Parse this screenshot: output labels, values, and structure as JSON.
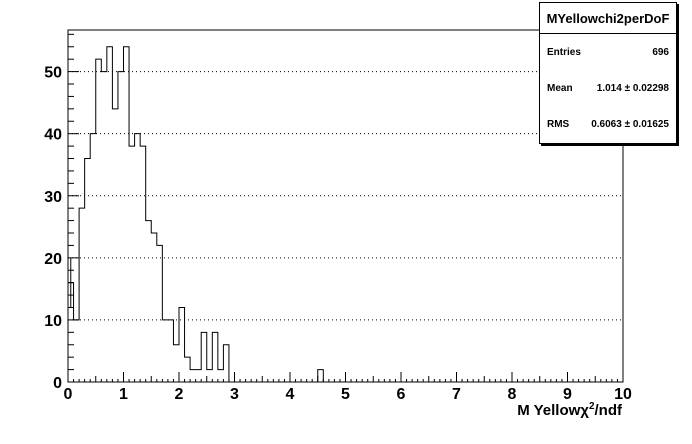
{
  "chart_data": {
    "type": "bar",
    "histogram_style": "step",
    "xlabel": "M Yellowχ²/ndf",
    "xlabel_parts": {
      "prefix": "M Yellow",
      "chi": "χ",
      "sup": "2",
      "suffix": "/ndf"
    },
    "ylabel": "",
    "xlim": [
      0,
      10
    ],
    "ylim": [
      0,
      56.7
    ],
    "x_ticks": [
      "0",
      "1",
      "2",
      "3",
      "4",
      "5",
      "6",
      "7",
      "8",
      "9",
      "10"
    ],
    "y_ticks": [
      "0",
      "10",
      "20",
      "30",
      "40",
      "50"
    ],
    "y_tick_values": [
      0,
      10,
      20,
      30,
      40,
      50
    ],
    "grid": "horizontal dotted",
    "bin_width": 0.1,
    "bin_edges_start": 0,
    "values": [
      16,
      10,
      28,
      36,
      40,
      52,
      50,
      54,
      44,
      50,
      54,
      38,
      40,
      38,
      26,
      24,
      22,
      10,
      10,
      6,
      12,
      4,
      2,
      2,
      8,
      2,
      8,
      2,
      6,
      0,
      0,
      0,
      0,
      0,
      0,
      0,
      0,
      0,
      0,
      0,
      0,
      0,
      0,
      0,
      0,
      2,
      0,
      0,
      0,
      0,
      0,
      0,
      0,
      0,
      0,
      0,
      0,
      0,
      0,
      0,
      0,
      0,
      0,
      0,
      0,
      0,
      0,
      0,
      0,
      0,
      0,
      0,
      0,
      0,
      0,
      0,
      0,
      0,
      0,
      0,
      0,
      0,
      0,
      0,
      0,
      0,
      0,
      0,
      0,
      0,
      0,
      0,
      0,
      0,
      0,
      0,
      0,
      0,
      0,
      0
    ],
    "error_bars": [
      {
        "bin": 0,
        "low": 12,
        "high": 20
      }
    ]
  },
  "stats_box": {
    "title": "MYellowchi2perDoF",
    "rows": [
      {
        "label": "Entries",
        "value": "696"
      },
      {
        "label": "Mean",
        "value": "1.014 ± 0.02298"
      },
      {
        "label": "RMS",
        "value": "0.6063 ± 0.01625"
      }
    ]
  }
}
